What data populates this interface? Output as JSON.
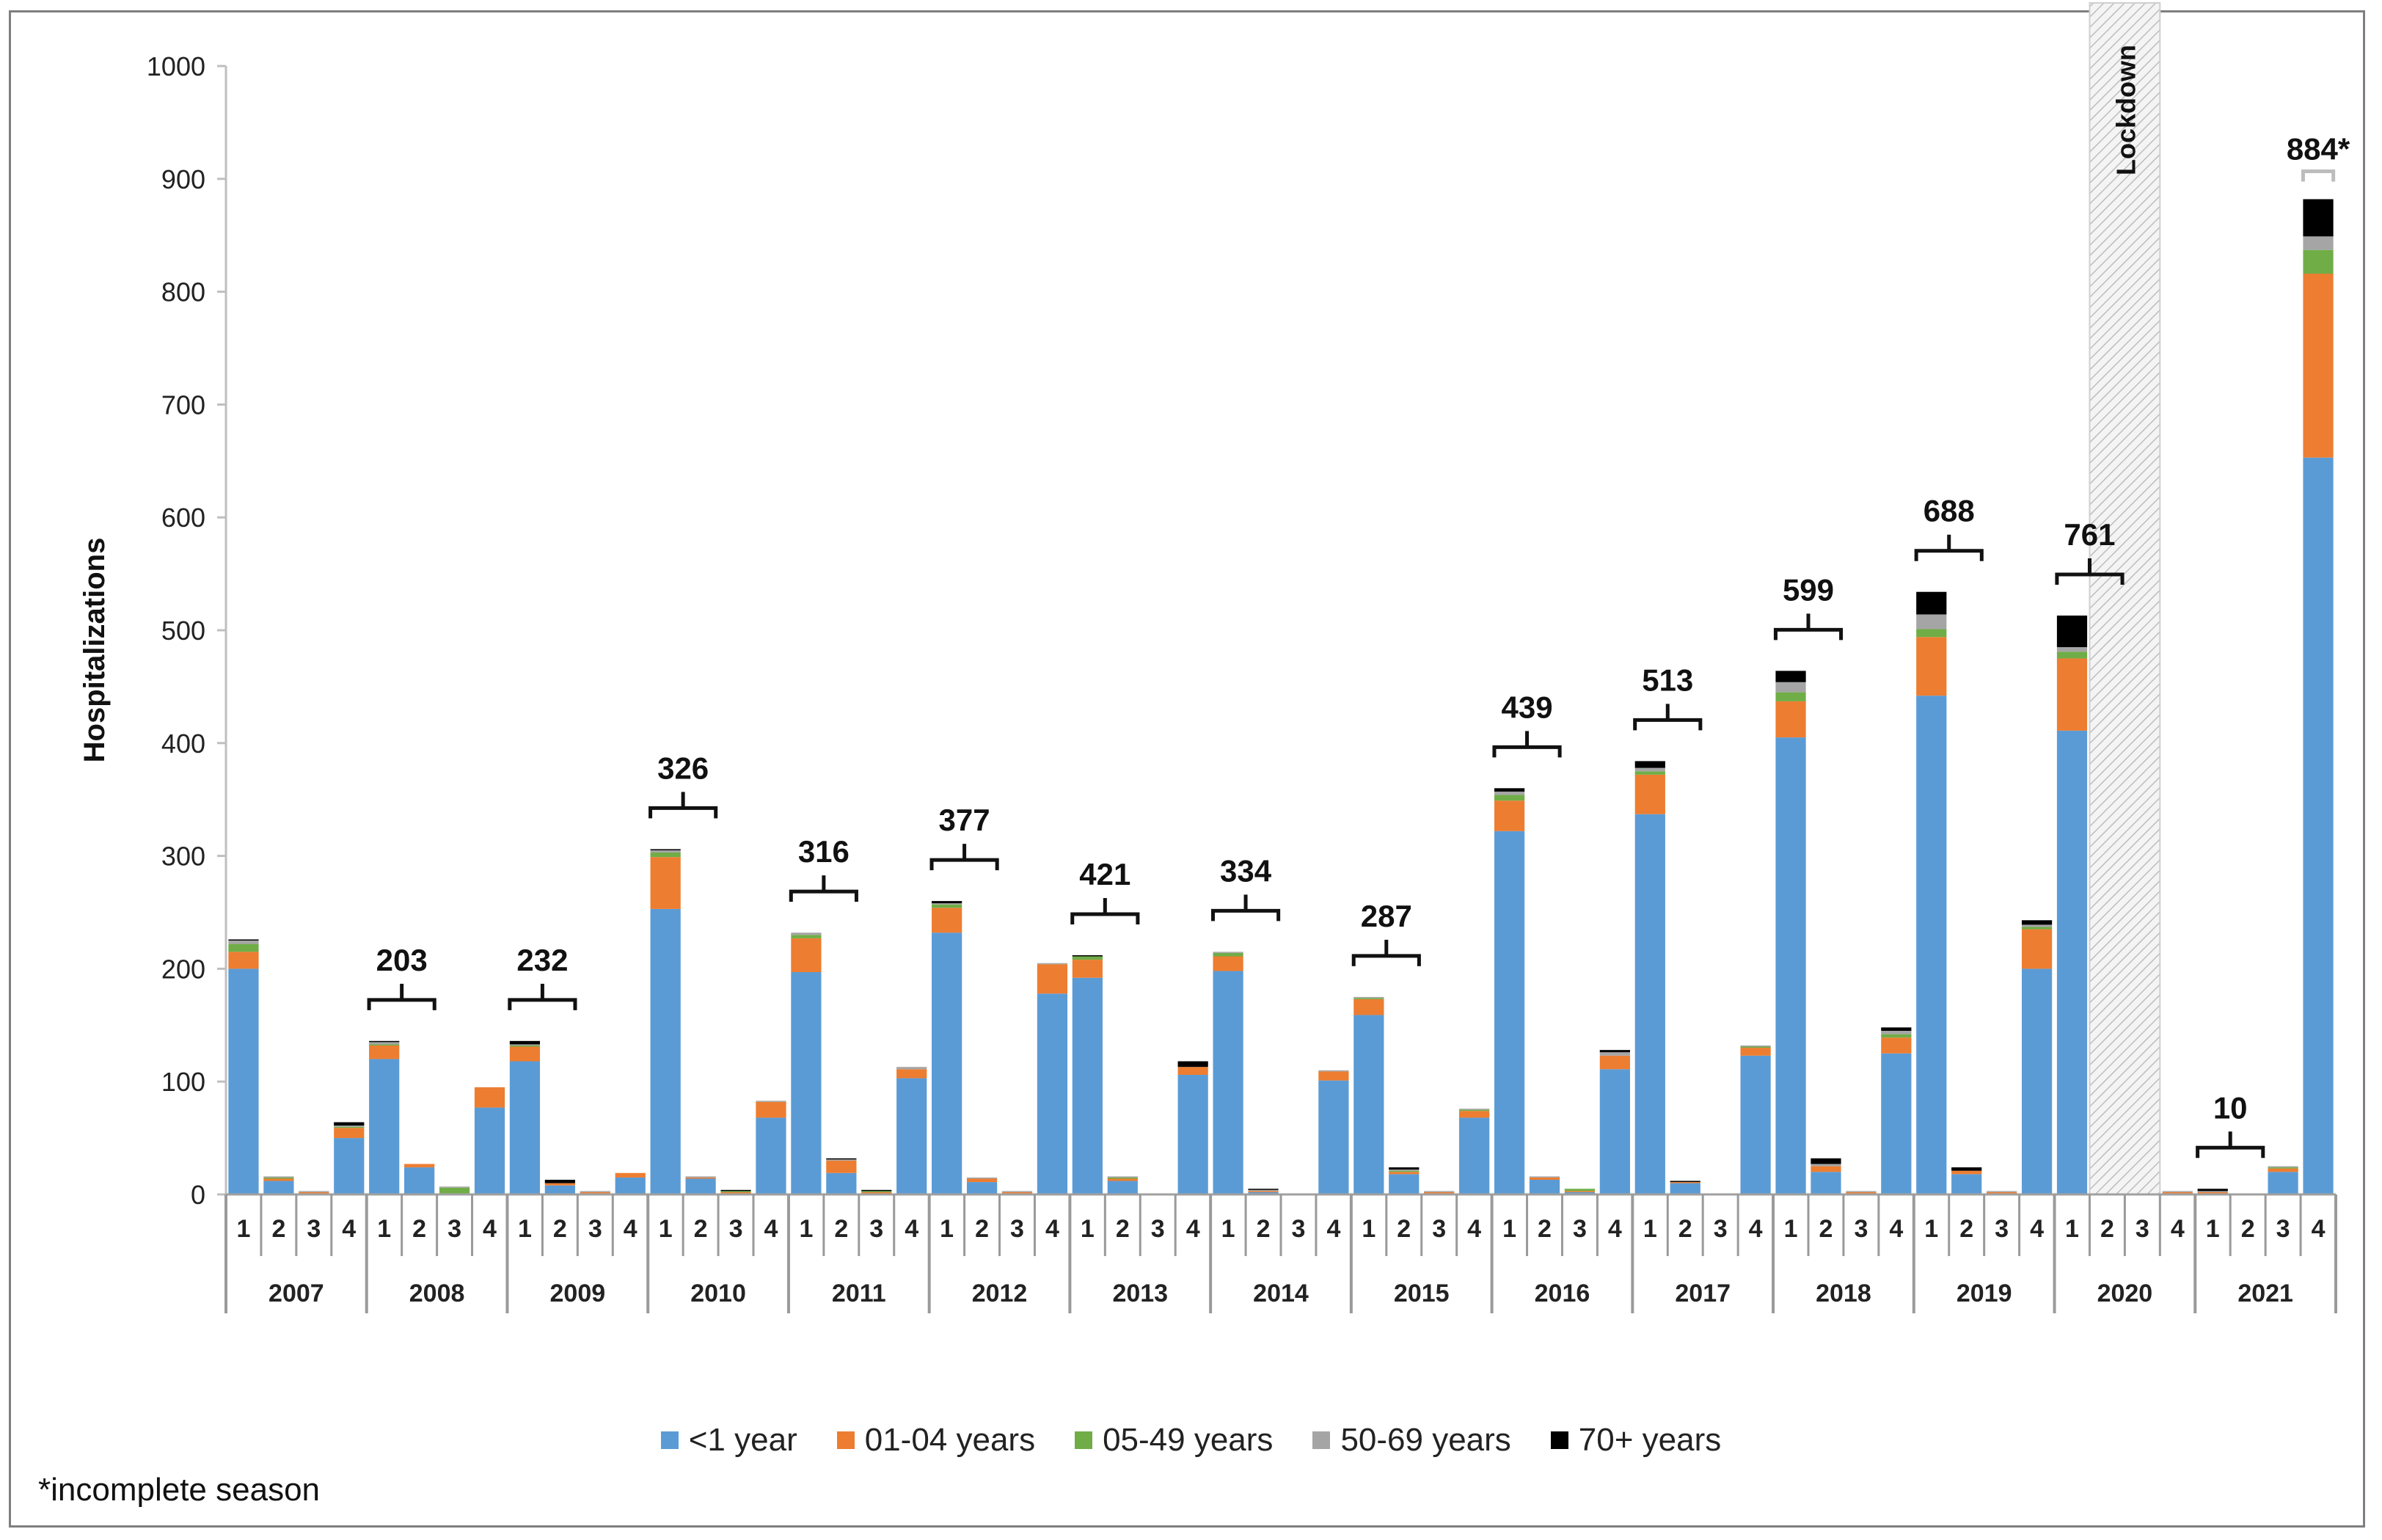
{
  "chart_data": {
    "type": "bar",
    "stacked": true,
    "ylabel": "Hospitalizations",
    "ylim": [
      0,
      1000
    ],
    "yticks": [
      0,
      100,
      200,
      300,
      400,
      500,
      600,
      700,
      800,
      900,
      1000
    ],
    "years": [
      "2007",
      "2008",
      "2009",
      "2010",
      "2011",
      "2012",
      "2013",
      "2014",
      "2015",
      "2016",
      "2017",
      "2018",
      "2019",
      "2020",
      "2021"
    ],
    "quarter_labels": [
      "1",
      "2",
      "3",
      "4"
    ],
    "series": [
      {
        "name": "<1 year",
        "color": "#5b9bd5"
      },
      {
        "name": "01-04 years",
        "color": "#ed7d31"
      },
      {
        "name": "05-49 years",
        "color": "#70ad47"
      },
      {
        "name": "50-69 years",
        "color": "#a5a5a5"
      },
      {
        "name": "70+ years",
        "color": "#000000"
      }
    ],
    "values": [
      [
        [
          200,
          15,
          7,
          3,
          1
        ],
        [
          12,
          2,
          1,
          1,
          0
        ],
        [
          1,
          1,
          0,
          1,
          0
        ],
        [
          50,
          9,
          1,
          1,
          3
        ]
      ],
      [
        [
          120,
          12,
          1,
          2,
          1
        ],
        [
          24,
          3,
          0,
          0,
          0
        ],
        [
          0,
          1,
          5,
          1,
          0
        ],
        [
          77,
          18,
          0,
          0,
          0
        ]
      ],
      [
        [
          118,
          13,
          1,
          1,
          3
        ],
        [
          8,
          2,
          0,
          0,
          3
        ],
        [
          1,
          1,
          0,
          1,
          0
        ],
        [
          15,
          4,
          0,
          0,
          0
        ]
      ],
      [
        [
          253,
          46,
          4,
          2,
          1
        ],
        [
          14,
          1,
          0,
          1,
          0
        ],
        [
          1,
          1,
          1,
          0,
          1
        ],
        [
          68,
          14,
          0,
          1,
          0
        ]
      ],
      [
        [
          197,
          30,
          3,
          2,
          0
        ],
        [
          19,
          11,
          0,
          1,
          1
        ],
        [
          1,
          1,
          1,
          0,
          1
        ],
        [
          103,
          8,
          0,
          2,
          0
        ]
      ],
      [
        [
          232,
          22,
          3,
          1,
          2
        ],
        [
          11,
          3,
          0,
          1,
          0
        ],
        [
          1,
          1,
          0,
          1,
          0
        ],
        [
          178,
          26,
          0,
          1,
          0
        ]
      ],
      [
        [
          192,
          16,
          3,
          0,
          1
        ],
        [
          12,
          2,
          1,
          1,
          0
        ],
        [
          0,
          0,
          0,
          0,
          0
        ],
        [
          106,
          7,
          0,
          0,
          5
        ]
      ],
      [
        [
          198,
          13,
          3,
          1,
          0
        ],
        [
          2,
          1,
          0,
          1,
          1
        ],
        [
          0,
          0,
          0,
          0,
          0
        ],
        [
          101,
          8,
          0,
          1,
          0
        ]
      ],
      [
        [
          159,
          14,
          1,
          1,
          0
        ],
        [
          18,
          2,
          1,
          1,
          2
        ],
        [
          1,
          1,
          0,
          1,
          0
        ],
        [
          68,
          6,
          1,
          1,
          0
        ]
      ],
      [
        [
          322,
          27,
          5,
          3,
          3
        ],
        [
          13,
          2,
          0,
          1,
          0
        ],
        [
          2,
          1,
          2,
          0,
          0
        ],
        [
          111,
          12,
          0,
          3,
          2
        ]
      ],
      [
        [
          337,
          35,
          3,
          3,
          6
        ],
        [
          10,
          1,
          0,
          0,
          1
        ],
        [
          0,
          0,
          0,
          0,
          0
        ],
        [
          123,
          7,
          1,
          1,
          0
        ]
      ],
      [
        [
          405,
          32,
          8,
          9,
          10
        ],
        [
          20,
          5,
          0,
          2,
          5
        ],
        [
          1,
          1,
          0,
          1,
          0
        ],
        [
          125,
          14,
          3,
          3,
          3
        ]
      ],
      [
        [
          442,
          52,
          7,
          13,
          20
        ],
        [
          18,
          3,
          0,
          0,
          3
        ],
        [
          1,
          1,
          0,
          1,
          0
        ],
        [
          200,
          35,
          2,
          2,
          4
        ]
      ],
      [
        [
          411,
          64,
          6,
          4,
          28
        ],
        [
          0,
          0,
          0,
          0,
          0
        ],
        [
          0,
          0,
          0,
          0,
          0
        ],
        [
          1,
          1,
          0,
          1,
          0
        ]
      ],
      [
        [
          1,
          1,
          0,
          1,
          2
        ],
        [
          0,
          0,
          0,
          0,
          0
        ],
        [
          20,
          3,
          1,
          1,
          0
        ],
        [
          653,
          163,
          21,
          12,
          33
        ]
      ]
    ],
    "season_totals": [
      {
        "label": "203",
        "year_start": 1,
        "quarter_start": 0,
        "quarter_end": 1
      },
      {
        "label": "232",
        "year_start": 2,
        "quarter_start": 0,
        "quarter_end": 1
      },
      {
        "label": "326",
        "year_start": 3,
        "quarter_start": 0,
        "quarter_end": 1
      },
      {
        "label": "316",
        "year_start": 4,
        "quarter_start": 0,
        "quarter_end": 1
      },
      {
        "label": "377",
        "year_start": 5,
        "quarter_start": 0,
        "quarter_end": 1
      },
      {
        "label": "421",
        "year_start": 6,
        "quarter_start": 0,
        "quarter_end": 1
      },
      {
        "label": "334",
        "year_start": 7,
        "quarter_start": 0,
        "quarter_end": 1
      },
      {
        "label": "287",
        "year_start": 8,
        "quarter_start": 0,
        "quarter_end": 1
      },
      {
        "label": "439",
        "year_start": 9,
        "quarter_start": 0,
        "quarter_end": 1
      },
      {
        "label": "513",
        "year_start": 10,
        "quarter_start": 0,
        "quarter_end": 1
      },
      {
        "label": "599",
        "year_start": 11,
        "quarter_start": 0,
        "quarter_end": 1
      },
      {
        "label": "688",
        "year_start": 12,
        "quarter_start": 0,
        "quarter_end": 1
      },
      {
        "label": "761",
        "year_start": 13,
        "quarter_start": 0,
        "quarter_end": 1
      },
      {
        "label": "10",
        "year_start": 14,
        "quarter_start": 0,
        "quarter_end": 1
      },
      {
        "label": "884*",
        "year_start": 14,
        "quarter_start": 3,
        "quarter_end": 3
      }
    ],
    "annotations": {
      "lockdown": {
        "label": "Lockdown",
        "year": 13,
        "quarter_start": 1,
        "quarter_end": 2
      }
    },
    "footnote": "*incomplete season"
  }
}
